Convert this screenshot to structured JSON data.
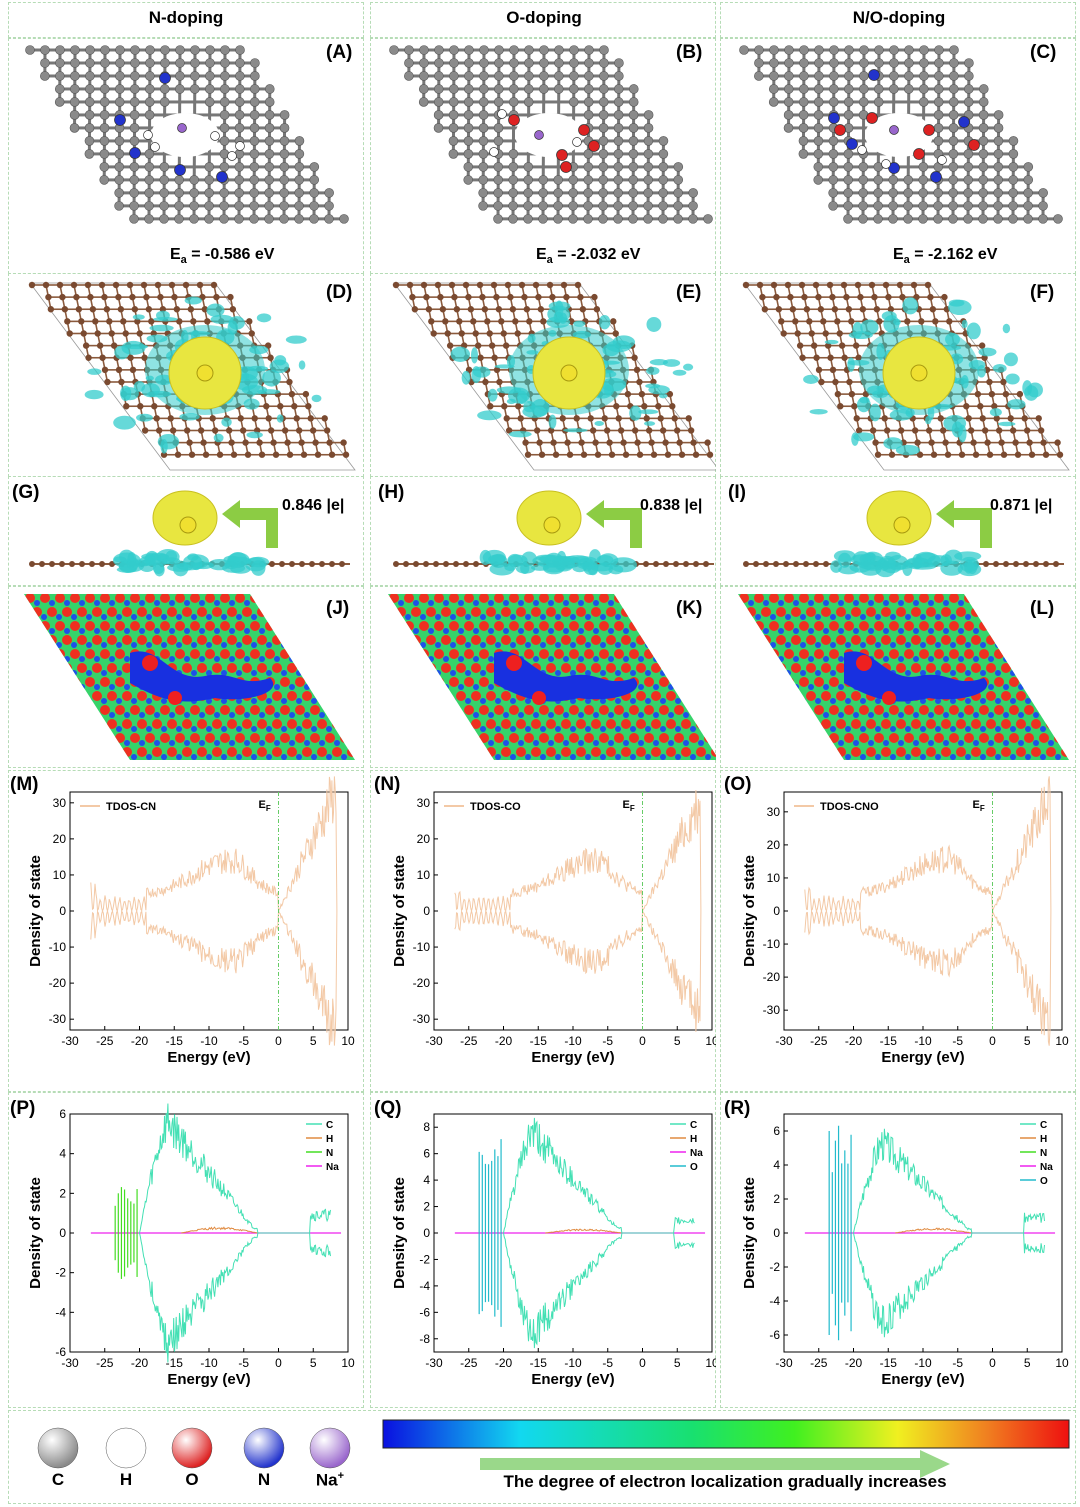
{
  "headers": [
    "N-doping",
    "O-doping",
    "N/O-doping"
  ],
  "panel_labels": [
    "(A)",
    "(B)",
    "(C)",
    "(D)",
    "(E)",
    "(F)",
    "(G)",
    "(H)",
    "(I)",
    "(J)",
    "(K)",
    "(L)",
    "(M)",
    "(N)",
    "(O)",
    "(P)",
    "(Q)",
    "(R)"
  ],
  "adsorption": [
    {
      "prefix": "E",
      "sub": "a",
      "value": " = -0.586 eV"
    },
    {
      "prefix": "E",
      "sub": "a",
      "value": " = -2.032 eV"
    },
    {
      "prefix": "E",
      "sub": "a",
      "value": " = -2.162 eV"
    }
  ],
  "charges": [
    "0.846 |e|",
    "0.838 |e|",
    "0.871 |e|"
  ],
  "colors": {
    "carbon": "#8a8a8a",
    "nitrogen": "#2233cc",
    "oxygen": "#dd2222",
    "hydrogen": "#ffffff",
    "sodium": "#9966cc",
    "isosurface_cyan": "#33cccc",
    "isosurface_yellow": "#e8e640",
    "arrow": "#8ccc44",
    "tdos": "#f3c9a6",
    "C": "#44e0b4",
    "H": "#e08a40",
    "N": "#44dd22",
    "Na": "#ee22ee",
    "O": "#22bbcc",
    "border": "#b6dcb6"
  },
  "chart_data": [
    {
      "type": "line",
      "panel": "(M)",
      "series": [
        {
          "name": "TDOS-CN"
        }
      ],
      "fermi_label_main": "E",
      "fermi_label_sub": "F",
      "xlabel": "Energy (eV)",
      "ylabel": "Density of state",
      "xlim": [
        -30,
        10
      ],
      "ylim": [
        -33,
        33
      ],
      "xticks": [
        -30,
        -25,
        -20,
        -15,
        -10,
        -5,
        0,
        5,
        10
      ],
      "yticks": [
        -30,
        -20,
        -10,
        0,
        10,
        20,
        30
      ]
    },
    {
      "type": "line",
      "panel": "(N)",
      "series": [
        {
          "name": "TDOS-CO"
        }
      ],
      "fermi_label_main": "E",
      "fermi_label_sub": "F",
      "xlabel": "Energy (eV)",
      "ylabel": "Density of state",
      "xlim": [
        -30,
        10
      ],
      "ylim": [
        -33,
        33
      ],
      "xticks": [
        -30,
        -25,
        -20,
        -15,
        -10,
        -5,
        0,
        5,
        10
      ],
      "yticks": [
        -30,
        -20,
        -10,
        0,
        10,
        20,
        30
      ]
    },
    {
      "type": "line",
      "panel": "(O)",
      "series": [
        {
          "name": "TDOS-CNO"
        }
      ],
      "fermi_label_main": "E",
      "fermi_label_sub": "F",
      "xlabel": "Energy (eV)",
      "ylabel": "Density of state",
      "xlim": [
        -30,
        10
      ],
      "ylim": [
        -36,
        36
      ],
      "xticks": [
        -30,
        -25,
        -20,
        -15,
        -10,
        -5,
        0,
        5,
        10
      ],
      "yticks": [
        -30,
        -20,
        -10,
        0,
        10,
        20,
        30
      ]
    },
    {
      "type": "line",
      "panel": "(P)",
      "series": [
        {
          "name": "C"
        },
        {
          "name": "H"
        },
        {
          "name": "N"
        },
        {
          "name": "Na"
        }
      ],
      "xlabel": "Energy (eV)",
      "ylabel": "Density of state",
      "xlim": [
        -30,
        10
      ],
      "ylim": [
        -6,
        6
      ],
      "xticks": [
        -30,
        -25,
        -20,
        -15,
        -10,
        -5,
        0,
        5,
        10
      ],
      "yticks": [
        -6,
        -4,
        -2,
        0,
        2,
        4,
        6
      ]
    },
    {
      "type": "line",
      "panel": "(Q)",
      "series": [
        {
          "name": "C"
        },
        {
          "name": "H"
        },
        {
          "name": "Na"
        },
        {
          "name": "O"
        }
      ],
      "xlabel": "Energy (eV)",
      "ylabel": "Density of state",
      "xlim": [
        -30,
        10
      ],
      "ylim": [
        -9,
        9
      ],
      "xticks": [
        -30,
        -25,
        -20,
        -15,
        -10,
        -5,
        0,
        5,
        10
      ],
      "yticks": [
        -8,
        -6,
        -4,
        -2,
        0,
        2,
        4,
        6,
        8
      ]
    },
    {
      "type": "line",
      "panel": "(R)",
      "series": [
        {
          "name": "C"
        },
        {
          "name": "H"
        },
        {
          "name": "N"
        },
        {
          "name": "Na"
        },
        {
          "name": "O"
        }
      ],
      "xlabel": "Energy (eV)",
      "ylabel": "Density of state",
      "xlim": [
        -30,
        10
      ],
      "ylim": [
        -7,
        7
      ],
      "xticks": [
        -30,
        -25,
        -20,
        -15,
        -10,
        -5,
        0,
        5,
        10
      ],
      "yticks": [
        -6,
        -4,
        -2,
        0,
        2,
        4,
        6
      ]
    }
  ],
  "legend": {
    "atoms": [
      {
        "label": "C",
        "color": "#8a8a8a"
      },
      {
        "label": "H",
        "color": "#ffffff"
      },
      {
        "label": "O",
        "color": "#dd2222"
      },
      {
        "label": "N",
        "color": "#2233cc"
      },
      {
        "label": "Na",
        "sup": "+",
        "color": "#9966cc"
      }
    ],
    "elf_caption": "The degree of electron localization gradually increases"
  }
}
